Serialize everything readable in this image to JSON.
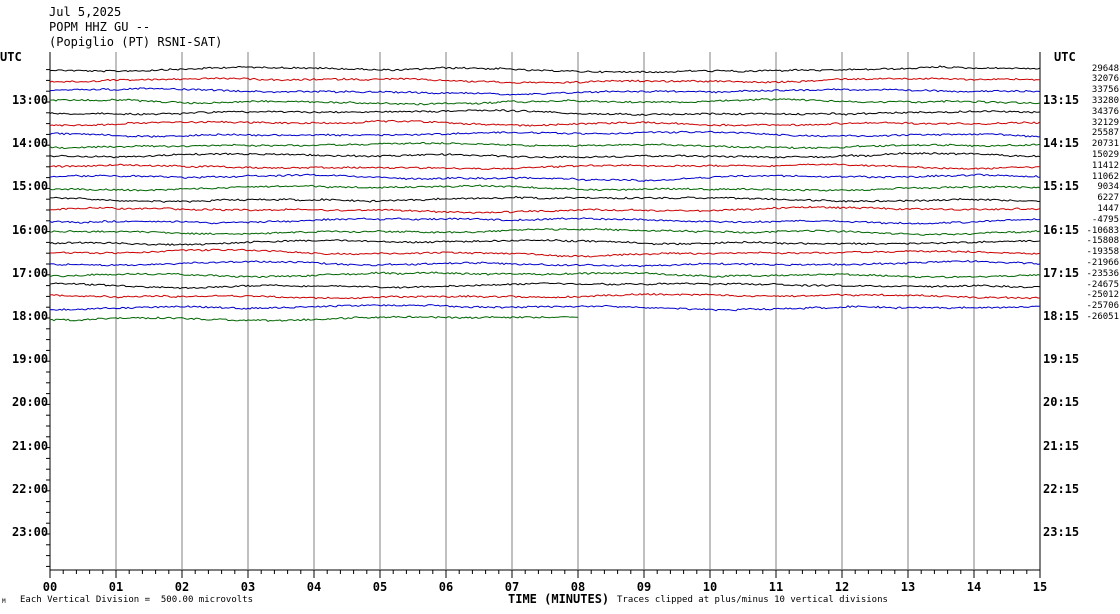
{
  "header": {
    "date": "Jul 5,2025",
    "station": "POPM HHZ GU --",
    "location": "(Popiglio (PT) RSNI-SAT)"
  },
  "left_utc_label": "UTC",
  "right_utc_label": "UTC",
  "footer": {
    "scale_note": "Each Vertical Division =  500.00 microvolts",
    "clip_note": "Traces clipped at plus/minus 10 vertical divisions",
    "corner_mark": "M"
  },
  "colors": {
    "trace_cycle": [
      "#000000",
      "#cc0000",
      "#0000cc",
      "#006600"
    ],
    "grid": "#808080"
  },
  "chart_data": {
    "type": "line",
    "title": "POPM HHZ GU -- (Popiglio (PT) RSNI-SAT)",
    "xlabel": "TIME (MINUTES)",
    "ylabel": "",
    "xlim": [
      0,
      15
    ],
    "x_ticks": [
      "00",
      "01",
      "02",
      "03",
      "04",
      "05",
      "06",
      "07",
      "08",
      "09",
      "10",
      "11",
      "12",
      "13",
      "14",
      "15"
    ],
    "left_hour_labels": [
      "13:00",
      "14:00",
      "15:00",
      "16:00",
      "17:00",
      "18:00",
      "19:00",
      "20:00",
      "21:00",
      "22:00",
      "23:00"
    ],
    "right_hour_labels": [
      "13:15",
      "14:15",
      "15:15",
      "16:15",
      "17:15",
      "18:15",
      "19:15",
      "20:15",
      "21:15",
      "22:15",
      "23:15"
    ],
    "lines_per_hour": 4,
    "first_line_time": "12:15",
    "trace_offsets": [
      "29648",
      "32076",
      "33756",
      "33280",
      "34376",
      "32129",
      "25587",
      "20731",
      "15029",
      "11412",
      "11062",
      "9034",
      "6227",
      "1447",
      "-4795",
      "-10683",
      "-15808",
      "-19358",
      "-21966",
      "-23536",
      "-24675",
      "-25012",
      "-25706",
      "-26051"
    ],
    "last_trace_end_minute": 8.0,
    "grid": true,
    "scale_microvolts_per_division": 500.0
  }
}
